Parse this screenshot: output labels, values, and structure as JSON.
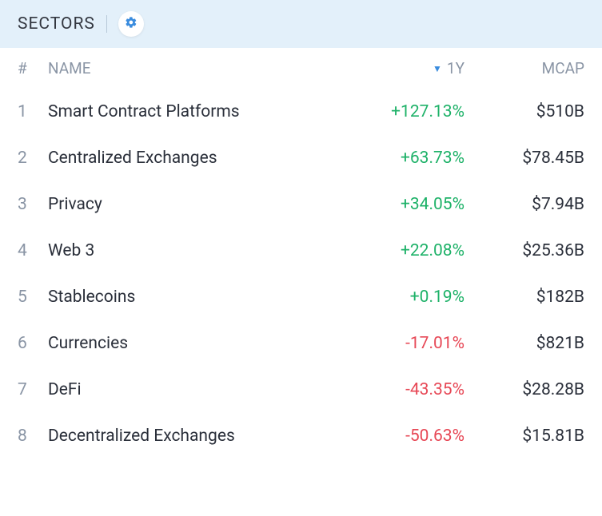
{
  "header": {
    "title": "SECTORS"
  },
  "columns": {
    "rank": "#",
    "name": "NAME",
    "change": "1Y",
    "mcap": "MCAP"
  },
  "style": {
    "header_bg": "#e3f0fa",
    "text_primary": "#2a2f3a",
    "text_secondary": "#8a95a5",
    "positive_color": "#1fb269",
    "negative_color": "#e74856",
    "accent_color": "#3a8cde"
  },
  "rows": [
    {
      "rank": "1",
      "name": "Smart Contract Platforms",
      "change": "+127.13%",
      "change_sign": "positive",
      "mcap": "$510B"
    },
    {
      "rank": "2",
      "name": "Centralized Exchanges",
      "change": "+63.73%",
      "change_sign": "positive",
      "mcap": "$78.45B"
    },
    {
      "rank": "3",
      "name": "Privacy",
      "change": "+34.05%",
      "change_sign": "positive",
      "mcap": "$7.94B"
    },
    {
      "rank": "4",
      "name": "Web 3",
      "change": "+22.08%",
      "change_sign": "positive",
      "mcap": "$25.36B"
    },
    {
      "rank": "5",
      "name": "Stablecoins",
      "change": "+0.19%",
      "change_sign": "positive",
      "mcap": "$182B"
    },
    {
      "rank": "6",
      "name": "Currencies",
      "change": "-17.01%",
      "change_sign": "negative",
      "mcap": "$821B"
    },
    {
      "rank": "7",
      "name": "DeFi",
      "change": "-43.35%",
      "change_sign": "negative",
      "mcap": "$28.28B"
    },
    {
      "rank": "8",
      "name": "Decentralized Exchanges",
      "change": "-50.63%",
      "change_sign": "negative",
      "mcap": "$15.81B"
    }
  ]
}
